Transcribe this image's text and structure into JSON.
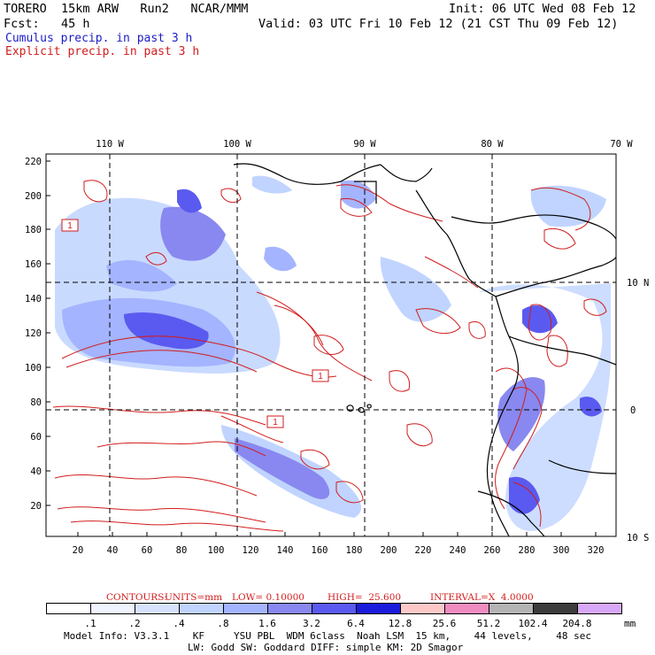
{
  "header": {
    "line1_left": "TORERO  15km ARW   Run2   NCAR/MMM",
    "line1_right": "Init: 06 UTC Wed 08 Feb 12",
    "line2_left": "Fcst:   45 h",
    "line2_right": "Valid: 03 UTC Fri 10 Feb 12 (21 CST Thu 09 Feb 12)",
    "legend_cumulus": "Cumulus precip. in past 3 h",
    "legend_explicit": "Explicit precip. in past 3 h"
  },
  "map": {
    "lon_labels_top": [
      "110 W",
      "100 W",
      "90 W",
      "80 W",
      "70 W"
    ],
    "lat_labels_right": [
      "10 N",
      "0",
      "10 S"
    ],
    "grid_y_labels": [
      "220",
      "200",
      "180",
      "160",
      "140",
      "120",
      "100",
      "80",
      "60",
      "40",
      "20"
    ],
    "grid_x_labels": [
      "20",
      "40",
      "60",
      "80",
      "100",
      "120",
      "140",
      "160",
      "180",
      "200",
      "220",
      "240",
      "260",
      "280",
      "300",
      "320"
    ],
    "contour_box_labels": [
      "1",
      "1",
      "1"
    ]
  },
  "contours_info": {
    "contours": "CONTOURS:",
    "units": "UNITS=mm",
    "low": "LOW= 0.10000",
    "high": "HIGH=  25.600",
    "interval": "INTERVAL=X  4.0000"
  },
  "colorbar": {
    "labels": [
      ".1",
      ".2",
      ".4",
      ".8",
      "1.6",
      "3.2",
      "6.4",
      "12.8",
      "25.6",
      "51.2",
      "102.4",
      "204.8"
    ],
    "unit": "mm",
    "colors": [
      "#ffffff",
      "#f0f4ff",
      "#d6e2ff",
      "#c0d4ff",
      "#a4b4ff",
      "#8888f0",
      "#5a5af0",
      "#1c1cdc",
      "#ffc8c8",
      "#f08cc0",
      "#b4b4b4",
      "#3c3c3c",
      "#d8a8f8"
    ]
  },
  "footer": {
    "line1": "Model Info: V3.3.1    KF     YSU PBL  WDM 6class  Noah LSM  15 km,    44 levels,    48 sec",
    "line2": "LW: Godd SW: Goddard DIFF: simple KM: 2D Smagor"
  }
}
